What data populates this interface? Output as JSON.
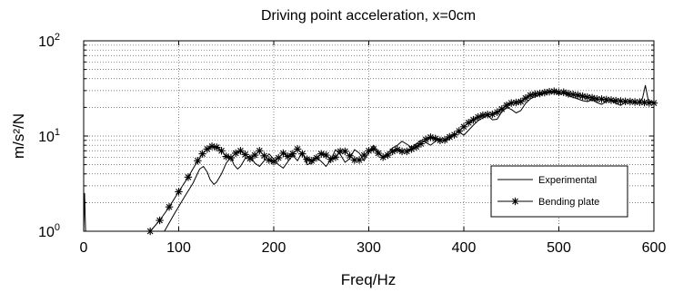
{
  "chart_data": {
    "type": "line",
    "title": "Driving point acceleration, x=0cm",
    "xlabel": "Freq/Hz",
    "ylabel": "m/s²/N",
    "y_scale": "log",
    "xlim": [
      0,
      600
    ],
    "ylim": [
      1,
      100
    ],
    "x_ticks": [
      "0",
      "100",
      "200",
      "300",
      "400",
      "500",
      "600"
    ],
    "y_ticks": [
      {
        "base": "10",
        "exp": "0"
      },
      {
        "base": "10",
        "exp": "1"
      },
      {
        "base": "10",
        "exp": "2"
      }
    ],
    "grid": true,
    "grid_style": "dotted",
    "legend_position": "lower-right",
    "series": [
      {
        "name": "Experimental",
        "marker": "none",
        "x": [
          0,
          1,
          2,
          3,
          4,
          5,
          85,
          95,
          105,
          115,
          122,
          126,
          130,
          133,
          137,
          140,
          145,
          150,
          155,
          158,
          162,
          165,
          170,
          175,
          180,
          185,
          190,
          195,
          200,
          205,
          210,
          215,
          220,
          225,
          230,
          235,
          240,
          245,
          250,
          255,
          260,
          265,
          270,
          275,
          280,
          285,
          290,
          295,
          300,
          305,
          310,
          315,
          320,
          325,
          330,
          335,
          340,
          345,
          350,
          355,
          360,
          365,
          370,
          375,
          380,
          385,
          390,
          395,
          400,
          405,
          410,
          415,
          420,
          425,
          430,
          435,
          440,
          445,
          450,
          455,
          460,
          465,
          470,
          475,
          480,
          485,
          490,
          495,
          500,
          505,
          510,
          515,
          520,
          525,
          530,
          535,
          540,
          545,
          550,
          555,
          560,
          565,
          570,
          575,
          580,
          585,
          588,
          591,
          594,
          597,
          600
        ],
        "y": [
          1.0,
          2.5,
          1.0,
          1.0,
          1.0,
          1.0,
          1.0,
          1.5,
          2.2,
          3.2,
          4.5,
          4.8,
          4.2,
          3.5,
          3.1,
          3.3,
          4.0,
          5.2,
          6.0,
          5.0,
          4.5,
          4.8,
          5.8,
          6.2,
          5.2,
          4.8,
          5.5,
          6.5,
          5.7,
          5.0,
          4.6,
          5.4,
          6.3,
          5.5,
          6.8,
          5.0,
          5.2,
          6.0,
          5.4,
          4.8,
          5.6,
          7.2,
          6.4,
          5.3,
          5.8,
          7.2,
          6.6,
          5.5,
          6.8,
          8.0,
          6.7,
          6.0,
          6.6,
          7.5,
          8.0,
          8.8,
          8.2,
          7.6,
          8.3,
          9.0,
          8.6,
          8.0,
          8.8,
          9.4,
          8.8,
          9.3,
          10.5,
          11.0,
          10.2,
          11.5,
          13.0,
          14.5,
          15.5,
          16.5,
          14.8,
          15.0,
          18.0,
          20.0,
          19.0,
          17.5,
          18.5,
          22.0,
          24.5,
          26.0,
          27.0,
          28.0,
          29.0,
          28.5,
          27.5,
          28.0,
          26.5,
          25.5,
          24.5,
          23.5,
          23.0,
          24.0,
          22.5,
          21.5,
          23.0,
          24.5,
          22.0,
          21.0,
          22.5,
          23.5,
          22.0,
          23.0,
          25.0,
          34.0,
          24.0,
          22.5,
          23.0
        ]
      },
      {
        "name": "Bending plate",
        "marker": "asterisk",
        "x": [
          70,
          80,
          90,
          100,
          110,
          120,
          125,
          130,
          135,
          140,
          145,
          150,
          155,
          160,
          165,
          170,
          175,
          180,
          185,
          190,
          195,
          200,
          205,
          210,
          215,
          220,
          225,
          230,
          235,
          240,
          245,
          250,
          255,
          260,
          265,
          270,
          275,
          280,
          285,
          290,
          295,
          300,
          305,
          310,
          315,
          320,
          325,
          330,
          335,
          340,
          345,
          350,
          355,
          360,
          365,
          370,
          375,
          380,
          385,
          390,
          395,
          400,
          405,
          410,
          415,
          420,
          425,
          430,
          435,
          440,
          445,
          450,
          455,
          460,
          465,
          470,
          475,
          480,
          485,
          490,
          495,
          500,
          505,
          510,
          515,
          520,
          525,
          530,
          535,
          540,
          545,
          550,
          555,
          560,
          565,
          570,
          575,
          580,
          585,
          590,
          595,
          600
        ],
        "y": [
          1.0,
          1.3,
          1.8,
          2.6,
          3.7,
          5.5,
          6.5,
          7.3,
          7.8,
          7.6,
          7.0,
          6.1,
          5.9,
          6.6,
          7.0,
          6.4,
          5.8,
          6.3,
          7.0,
          6.2,
          5.6,
          5.4,
          5.9,
          6.6,
          6.1,
          6.5,
          7.3,
          6.5,
          5.7,
          5.5,
          5.9,
          6.5,
          6.3,
          5.7,
          6.0,
          6.9,
          6.9,
          6.2,
          5.6,
          5.6,
          6.3,
          7.0,
          7.3,
          6.6,
          6.0,
          6.3,
          6.9,
          7.2,
          6.9,
          6.9,
          7.3,
          7.7,
          8.3,
          9.2,
          9.7,
          9.4,
          9.0,
          9.1,
          9.8,
          10.3,
          11.3,
          12.5,
          13.8,
          14.8,
          15.8,
          16.5,
          16.8,
          16.9,
          17.8,
          19.2,
          21.0,
          22.2,
          22.5,
          23.0,
          25.0,
          26.8,
          27.5,
          28.0,
          28.6,
          29.2,
          29.5,
          28.8,
          28.8,
          27.8,
          27.3,
          26.8,
          26.2,
          25.6,
          25.2,
          24.5,
          24.4,
          24.1,
          23.8,
          23.5,
          23.3,
          23.1,
          23.0,
          22.8,
          22.7,
          22.5,
          22.3,
          22.2
        ]
      }
    ]
  }
}
